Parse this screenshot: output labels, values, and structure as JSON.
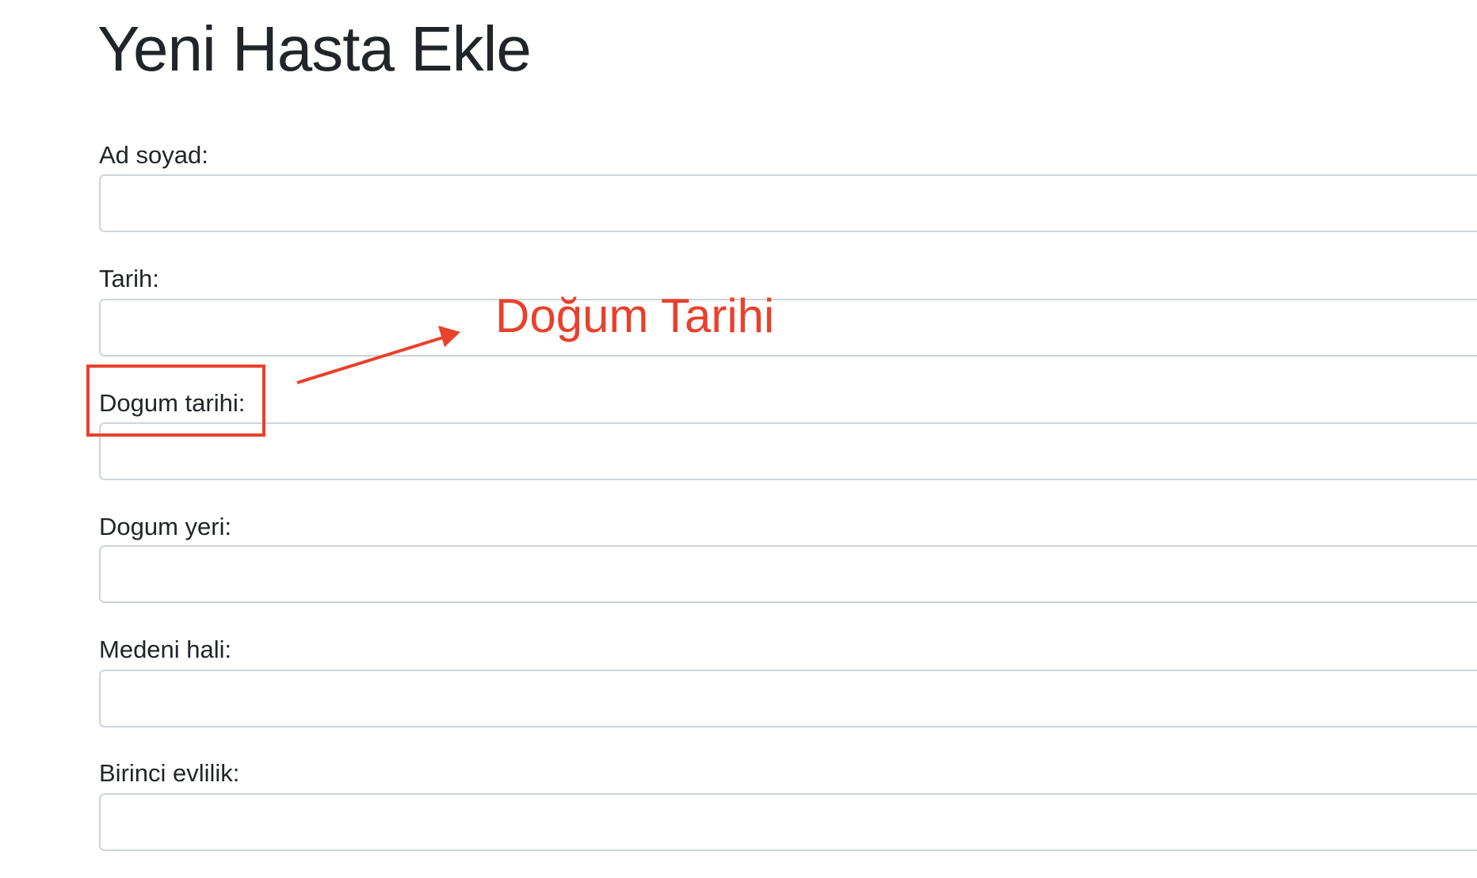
{
  "page": {
    "title": "Yeni Hasta Ekle"
  },
  "form": {
    "fields": [
      {
        "label": "Ad soyad:",
        "value": "",
        "placeholder": ""
      },
      {
        "label": "Tarih:",
        "value": "",
        "placeholder": ""
      },
      {
        "label": "Dogum tarihi:",
        "value": "",
        "placeholder": ""
      },
      {
        "label": "Dogum yeri:",
        "value": "",
        "placeholder": ""
      },
      {
        "label": "Medeni hali:",
        "value": "",
        "placeholder": ""
      },
      {
        "label": "Birinci evlilik:",
        "value": "",
        "placeholder": ""
      }
    ]
  },
  "annotation": {
    "text": "Doğum Tarihi",
    "color": "#e8412c"
  }
}
